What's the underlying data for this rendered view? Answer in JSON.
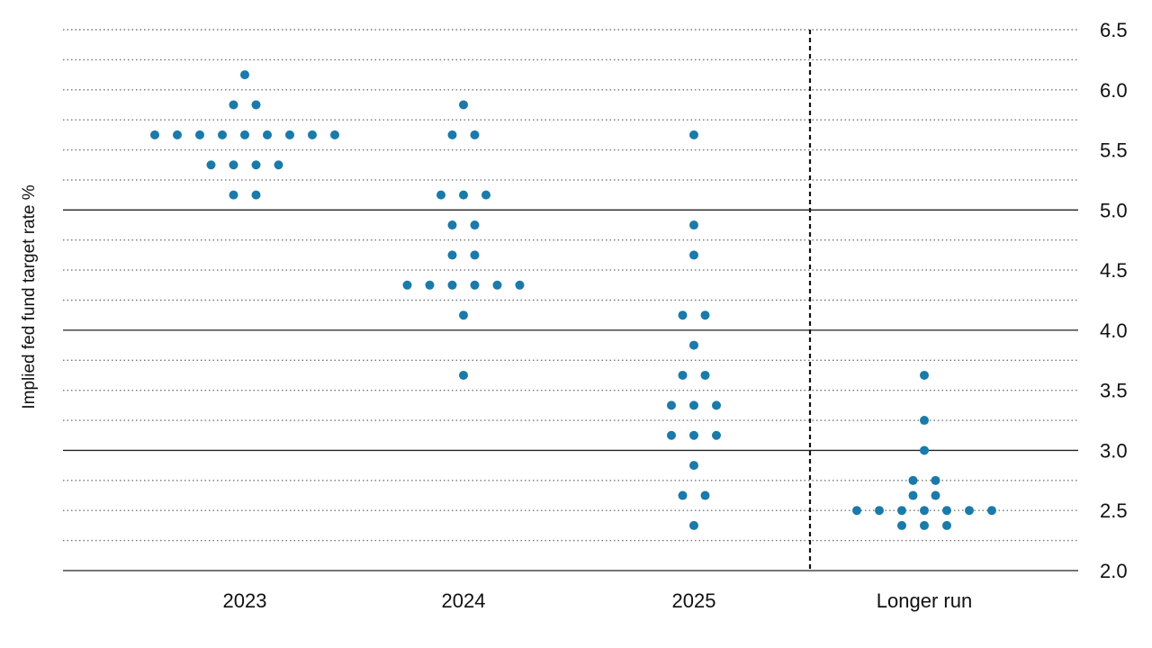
{
  "chart_data": {
    "type": "scatter",
    "ylabel": "Implied fed fund target rate %",
    "xlabel": "",
    "ylim": [
      2.0,
      6.5
    ],
    "y_ticks": [
      "6.5",
      "6.0",
      "5.5",
      "5.0",
      "4.5",
      "4.0",
      "3.5",
      "3.0",
      "2.5",
      "2.0"
    ],
    "categories": [
      "2023",
      "2024",
      "2025",
      "Longer run"
    ],
    "grid": "dotted horizontal lines every 0.25, solid at 3.0, 4.0 and 5.0",
    "separator": "dashed vertical line between 2025 and Longer run",
    "colors": {
      "dot": "#1a7aaa",
      "grid": "#777777",
      "text": "#111111"
    },
    "dot_counts": [
      {
        "category": "2023",
        "counts": [
          [
            6.125,
            1
          ],
          [
            5.875,
            2
          ],
          [
            5.625,
            9
          ],
          [
            5.375,
            4
          ],
          [
            5.125,
            2
          ]
        ]
      },
      {
        "category": "2024",
        "counts": [
          [
            5.875,
            1
          ],
          [
            5.625,
            2
          ],
          [
            5.125,
            3
          ],
          [
            4.875,
            2
          ],
          [
            4.625,
            2
          ],
          [
            4.375,
            6
          ],
          [
            4.125,
            1
          ],
          [
            3.625,
            1
          ]
        ]
      },
      {
        "category": "2025",
        "counts": [
          [
            5.625,
            1
          ],
          [
            4.875,
            1
          ],
          [
            4.625,
            1
          ],
          [
            4.125,
            2
          ],
          [
            3.875,
            1
          ],
          [
            3.625,
            2
          ],
          [
            3.375,
            3
          ],
          [
            3.125,
            3
          ],
          [
            2.875,
            1
          ],
          [
            2.625,
            2
          ],
          [
            2.375,
            1
          ]
        ]
      },
      {
        "category": "Longer run",
        "counts": [
          [
            3.625,
            1
          ],
          [
            3.25,
            1
          ],
          [
            3.0,
            1
          ],
          [
            2.75,
            2
          ],
          [
            2.625,
            2
          ],
          [
            2.5,
            7
          ],
          [
            2.375,
            3
          ]
        ]
      }
    ]
  }
}
